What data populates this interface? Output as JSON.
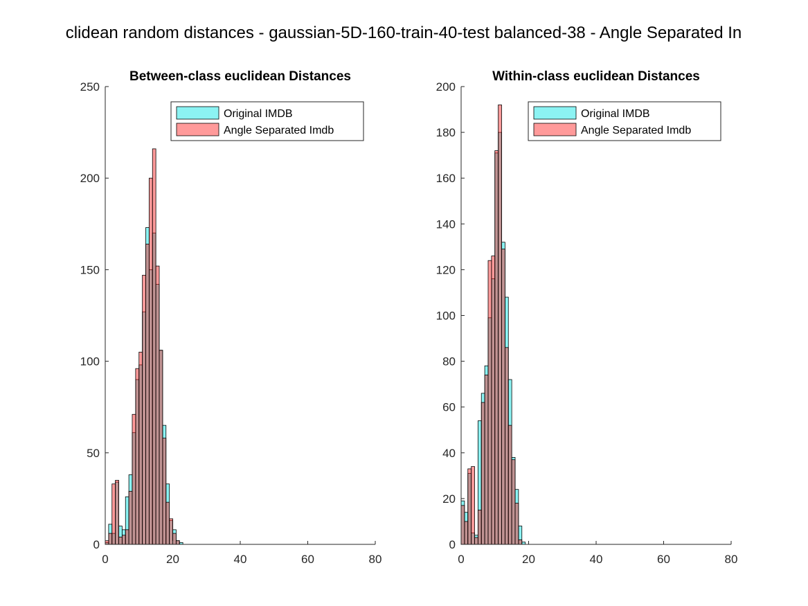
{
  "figure": {
    "suptitle": "clidean random distances - gaussian-5D-160-train-40-test balanced-38 - Angle Separated In"
  },
  "colors": {
    "series_a": "#00e5e5",
    "series_b": "#ff2020",
    "overlap": "#8c6f6e"
  },
  "chart_data": [
    {
      "type": "bar",
      "title": "Between-class euclidean Distances",
      "xlabel": "",
      "ylabel": "",
      "xlim": [
        0,
        80
      ],
      "ylim": [
        0,
        250
      ],
      "xticks": [
        "0",
        "20",
        "40",
        "60",
        "80"
      ],
      "yticks": [
        "0",
        "50",
        "100",
        "150",
        "200",
        "250"
      ],
      "grid": false,
      "legend_position": "top-right",
      "bin_width": 1.0,
      "bin_start": 0,
      "series": [
        {
          "name": "Original IMDB",
          "values": [
            1,
            11,
            6,
            34,
            10,
            8,
            26,
            38,
            61,
            90,
            98,
            127,
            173,
            150,
            170,
            142,
            106,
            65,
            33,
            13,
            8,
            2,
            1,
            0,
            0,
            0,
            0,
            0,
            0,
            0,
            0,
            0,
            0,
            0,
            0,
            0,
            0,
            0,
            0,
            0,
            0,
            0,
            0,
            0,
            0,
            0,
            0,
            0,
            0,
            0,
            0,
            0,
            0,
            0,
            0,
            0,
            0,
            0,
            0,
            0,
            0,
            0,
            0,
            0,
            0,
            0,
            0,
            0,
            0,
            0,
            0,
            0,
            0,
            0,
            0
          ]
        },
        {
          "name": "Angle Separated Imdb",
          "values": [
            2,
            6,
            33,
            35,
            4,
            5,
            8,
            29,
            71,
            96,
            105,
            147,
            164,
            200,
            216,
            152,
            106,
            58,
            23,
            14,
            6,
            2,
            0,
            0,
            0,
            0,
            0,
            0,
            0,
            0,
            0,
            0,
            0,
            0,
            0,
            0,
            0,
            0,
            0,
            0,
            0,
            0,
            0,
            0,
            0,
            0,
            0,
            0,
            0,
            0,
            0,
            0,
            0,
            0,
            0,
            0,
            0,
            0,
            0,
            0,
            0,
            0,
            0,
            0,
            0,
            0,
            0,
            0,
            0,
            0,
            0,
            0,
            0,
            0,
            0
          ]
        }
      ]
    },
    {
      "type": "bar",
      "title": "Within-class euclidean Distances",
      "xlabel": "",
      "ylabel": "",
      "xlim": [
        0,
        80
      ],
      "ylim": [
        0,
        200
      ],
      "xticks": [
        "0",
        "20",
        "40",
        "60",
        "80"
      ],
      "yticks": [
        "0",
        "20",
        "40",
        "60",
        "80",
        "100",
        "120",
        "140",
        "160",
        "180",
        "200"
      ],
      "grid": false,
      "legend_position": "top-right",
      "bin_width": 1.0,
      "bin_start": 0,
      "series": [
        {
          "name": "Original IMDB",
          "values": [
            19,
            14,
            31,
            5,
            4,
            54,
            66,
            78,
            99,
            116,
            171,
            180,
            132,
            108,
            72,
            38,
            24,
            8,
            1,
            0,
            0,
            0,
            0,
            0,
            0,
            0,
            0,
            0,
            0,
            0,
            0,
            0,
            0,
            0,
            0,
            0,
            0,
            0,
            0,
            0,
            0,
            0,
            0,
            0,
            0,
            0,
            0,
            0,
            0,
            0,
            0,
            0,
            0,
            0,
            0,
            0,
            0,
            0,
            0,
            0,
            0,
            0,
            0,
            0,
            0,
            0,
            0,
            0,
            0,
            0,
            0,
            0,
            0,
            0,
            0
          ]
        },
        {
          "name": "Angle Separated Imdb",
          "values": [
            17,
            10,
            33,
            34,
            3,
            15,
            62,
            74,
            124,
            126,
            172,
            192,
            129,
            86,
            52,
            37,
            18,
            2,
            0,
            0,
            0,
            0,
            0,
            0,
            0,
            0,
            0,
            0,
            0,
            0,
            0,
            0,
            0,
            0,
            0,
            0,
            0,
            0,
            0,
            0,
            0,
            0,
            0,
            0,
            0,
            0,
            0,
            0,
            0,
            0,
            0,
            0,
            0,
            0,
            0,
            0,
            0,
            0,
            0,
            0,
            0,
            0,
            0,
            0,
            0,
            0,
            0,
            0,
            0,
            0,
            0,
            0,
            0,
            0,
            0
          ]
        }
      ]
    }
  ]
}
